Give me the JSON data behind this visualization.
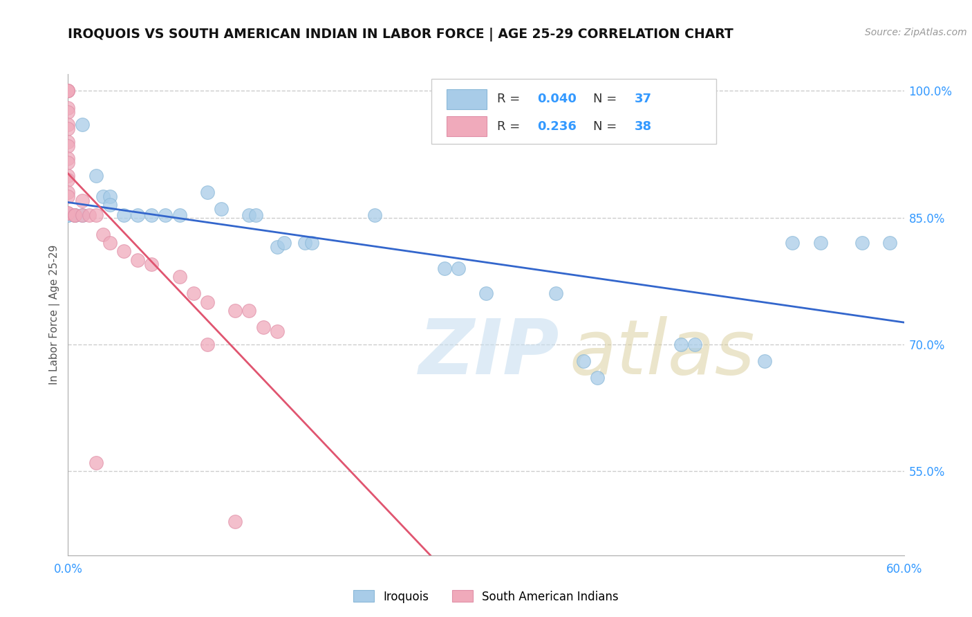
{
  "title": "IROQUOIS VS SOUTH AMERICAN INDIAN IN LABOR FORCE | AGE 25-29 CORRELATION CHART",
  "source": "Source: ZipAtlas.com",
  "ylabel": "In Labor Force | Age 25-29",
  "legend_label_blue": "Iroquois",
  "legend_label_pink": "South American Indians",
  "r_blue": "0.040",
  "n_blue": "37",
  "r_pink": "0.236",
  "n_pink": "38",
  "xlim": [
    0.0,
    0.6
  ],
  "ylim": [
    0.45,
    1.02
  ],
  "ytick_positions": [
    0.55,
    0.7,
    0.85,
    1.0
  ],
  "ytick_labels": [
    "55.0%",
    "70.0%",
    "85.0%",
    "100.0%"
  ],
  "background_color": "#ffffff",
  "grid_color": "#cccccc",
  "blue_color": "#a8cce8",
  "pink_color": "#f0aabb",
  "trend_blue": "#3366cc",
  "trend_pink": "#e05570",
  "blue_scatter": [
    [
      0.0,
      0.853
    ],
    [
      0.0,
      0.853
    ],
    [
      0.005,
      0.853
    ],
    [
      0.005,
      0.853
    ],
    [
      0.01,
      0.96
    ],
    [
      0.01,
      0.853
    ],
    [
      0.02,
      0.9
    ],
    [
      0.025,
      0.875
    ],
    [
      0.03,
      0.875
    ],
    [
      0.03,
      0.865
    ],
    [
      0.04,
      0.853
    ],
    [
      0.05,
      0.853
    ],
    [
      0.06,
      0.853
    ],
    [
      0.07,
      0.853
    ],
    [
      0.08,
      0.853
    ],
    [
      0.1,
      0.88
    ],
    [
      0.11,
      0.86
    ],
    [
      0.13,
      0.853
    ],
    [
      0.135,
      0.853
    ],
    [
      0.15,
      0.815
    ],
    [
      0.155,
      0.82
    ],
    [
      0.17,
      0.82
    ],
    [
      0.175,
      0.82
    ],
    [
      0.22,
      0.853
    ],
    [
      0.27,
      0.79
    ],
    [
      0.28,
      0.79
    ],
    [
      0.3,
      0.76
    ],
    [
      0.35,
      0.76
    ],
    [
      0.37,
      0.68
    ],
    [
      0.38,
      0.66
    ],
    [
      0.44,
      0.7
    ],
    [
      0.45,
      0.7
    ],
    [
      0.5,
      0.68
    ],
    [
      0.52,
      0.82
    ],
    [
      0.54,
      0.82
    ],
    [
      0.57,
      0.82
    ],
    [
      0.59,
      0.82
    ]
  ],
  "pink_scatter": [
    [
      0.0,
      1.0
    ],
    [
      0.0,
      1.0
    ],
    [
      0.0,
      1.0
    ],
    [
      0.0,
      0.98
    ],
    [
      0.0,
      0.975
    ],
    [
      0.0,
      0.96
    ],
    [
      0.0,
      0.955
    ],
    [
      0.0,
      0.94
    ],
    [
      0.0,
      0.935
    ],
    [
      0.0,
      0.92
    ],
    [
      0.0,
      0.915
    ],
    [
      0.0,
      0.9
    ],
    [
      0.0,
      0.895
    ],
    [
      0.0,
      0.88
    ],
    [
      0.0,
      0.875
    ],
    [
      0.0,
      0.855
    ],
    [
      0.0,
      0.855
    ],
    [
      0.005,
      0.853
    ],
    [
      0.005,
      0.853
    ],
    [
      0.01,
      0.87
    ],
    [
      0.01,
      0.853
    ],
    [
      0.015,
      0.853
    ],
    [
      0.02,
      0.853
    ],
    [
      0.025,
      0.83
    ],
    [
      0.03,
      0.82
    ],
    [
      0.04,
      0.81
    ],
    [
      0.05,
      0.8
    ],
    [
      0.06,
      0.795
    ],
    [
      0.08,
      0.78
    ],
    [
      0.09,
      0.76
    ],
    [
      0.1,
      0.75
    ],
    [
      0.12,
      0.74
    ],
    [
      0.13,
      0.74
    ],
    [
      0.14,
      0.72
    ],
    [
      0.15,
      0.715
    ],
    [
      0.02,
      0.56
    ],
    [
      0.1,
      0.7
    ],
    [
      0.12,
      0.49
    ]
  ]
}
